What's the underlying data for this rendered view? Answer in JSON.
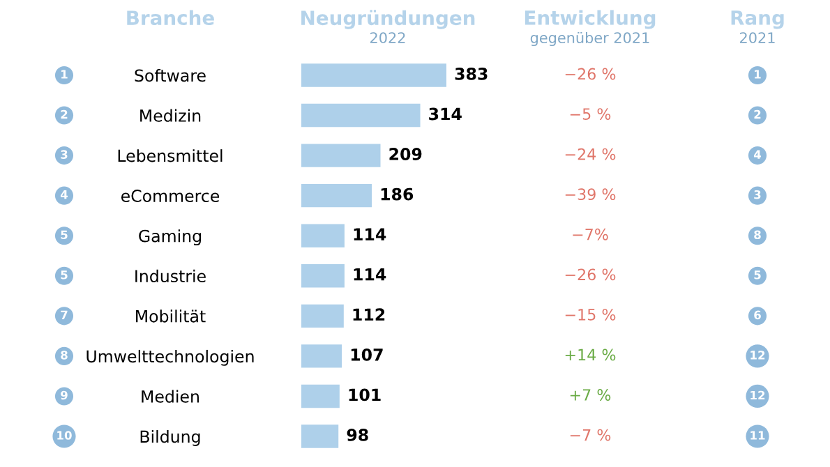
{
  "chart_data": {
    "type": "bar",
    "orientation": "horizontal",
    "title": "Neugründungen",
    "subtitle": "2022",
    "ylabel": "Branche",
    "categories": [
      "Software",
      "Medizin",
      "Lebensmittel",
      "eCommerce",
      "Gaming",
      "Industrie",
      "Mobilität",
      "Umwelttechnologien",
      "Medien",
      "Bildung"
    ],
    "values": [
      383,
      314,
      209,
      186,
      114,
      114,
      112,
      107,
      101,
      98
    ],
    "color": "#aed0ea",
    "data_labels": true,
    "annotations": [
      "Entwicklung",
      "gegenüber 2021",
      "Rang",
      "2021",
      "1",
      "−26 %",
      "1",
      "2",
      "−5 %",
      "2",
      "3",
      "−24 %",
      "4",
      "4",
      "−39 %",
      "3",
      "5",
      "−7%",
      "8",
      "5",
      "−26 %",
      "5",
      "7",
      "−15 %",
      "6",
      "8",
      "+14 %",
      "12",
      "9",
      "+7 %",
      "12",
      "10",
      "−7 %",
      "11"
    ]
  }
}
